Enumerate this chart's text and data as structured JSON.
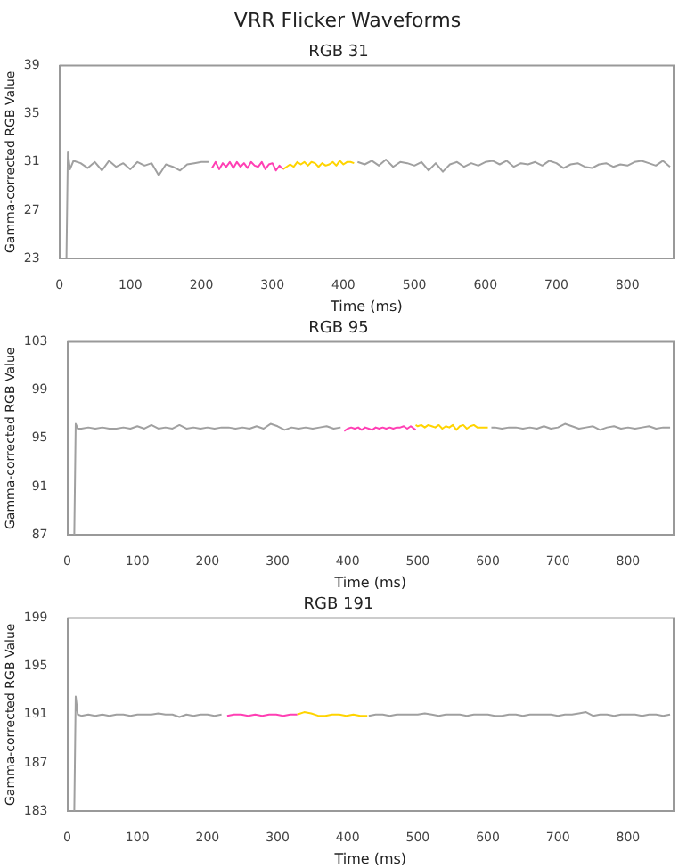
{
  "chart_data": [
    {
      "type": "line",
      "title": "VRR Flicker Waveforms",
      "subtitle": "RGB 31",
      "xlabel": "Time (ms)",
      "ylabel": "Gamma-corrected RGB Value",
      "xlim": [
        0,
        865
      ],
      "xticks": [
        0,
        100,
        200,
        300,
        400,
        500,
        600,
        700,
        800
      ],
      "ylim": [
        23,
        39
      ],
      "yticks": [
        23,
        27,
        31,
        35,
        39
      ],
      "grid": false,
      "legend": false,
      "marker": "none",
      "line_style": "solid",
      "series": [
        {
          "color": "#a0a0a0",
          "x": [
            10,
            12,
            15,
            20,
            30,
            40,
            50,
            60,
            70,
            80,
            90,
            100,
            110,
            120,
            130,
            140,
            150,
            160,
            170,
            180,
            190,
            200,
            210,
            213,
            420,
            430,
            440,
            450,
            460,
            470,
            480,
            490,
            500,
            510,
            520,
            530,
            540,
            550,
            560,
            570,
            580,
            590,
            600,
            610,
            620,
            630,
            640,
            650,
            660,
            670,
            680,
            690,
            700,
            710,
            720,
            730,
            740,
            750,
            760,
            770,
            780,
            790,
            800,
            810,
            820,
            830,
            840,
            850,
            860
          ],
          "values": [
            23,
            31.8,
            30.4,
            31.1,
            30.9,
            30.5,
            31.0,
            30.3,
            31.1,
            30.6,
            30.9,
            30.4,
            31.0,
            30.7,
            30.9,
            29.9,
            30.8,
            30.6,
            30.3,
            30.8,
            30.9,
            31.0,
            31.0,
            null,
            31.0,
            30.8,
            31.1,
            30.7,
            31.2,
            30.6,
            31.0,
            30.9,
            30.7,
            31.0,
            30.3,
            30.9,
            30.2,
            30.8,
            31.0,
            30.6,
            30.9,
            30.7,
            31.0,
            31.1,
            30.8,
            31.1,
            30.6,
            30.9,
            30.8,
            31.0,
            30.7,
            31.1,
            30.9,
            30.5,
            30.8,
            30.9,
            30.6,
            30.5,
            30.8,
            30.9,
            30.6,
            30.8,
            30.7,
            31.0,
            31.1,
            30.9,
            30.7,
            31.1,
            30.6
          ]
        },
        {
          "color": "#ff3fb4",
          "x": [
            215,
            220,
            225,
            230,
            235,
            240,
            245,
            250,
            255,
            260,
            265,
            270,
            275,
            280,
            285,
            290,
            295,
            300,
            305,
            310,
            315
          ],
          "values": [
            30.5,
            31.0,
            30.4,
            30.9,
            30.6,
            31.0,
            30.5,
            31.0,
            30.6,
            30.9,
            30.5,
            31.0,
            30.7,
            30.6,
            31.0,
            30.4,
            30.8,
            30.9,
            30.3,
            30.7,
            30.4
          ]
        },
        {
          "color": "#ffd400",
          "x": [
            315,
            320,
            325,
            330,
            335,
            340,
            345,
            350,
            355,
            360,
            365,
            370,
            375,
            380,
            385,
            390,
            395,
            400,
            405,
            410,
            415
          ],
          "values": [
            30.4,
            30.6,
            30.8,
            30.6,
            31.0,
            30.8,
            31.0,
            30.7,
            31.0,
            30.9,
            30.6,
            30.9,
            30.7,
            30.8,
            31.0,
            30.7,
            31.1,
            30.8,
            31.0,
            31.0,
            30.9
          ]
        }
      ]
    },
    {
      "type": "line",
      "subtitle": "RGB 95",
      "xlabel": "Time (ms)",
      "ylabel": "Gamma-corrected RGB Value",
      "xlim": [
        0,
        865
      ],
      "xticks": [
        0,
        100,
        200,
        300,
        400,
        500,
        600,
        700,
        800
      ],
      "ylim": [
        87,
        103
      ],
      "yticks": [
        87,
        91,
        95,
        99,
        103
      ],
      "grid": false,
      "legend": false,
      "marker": "none",
      "line_style": "solid",
      "series": [
        {
          "color": "#a0a0a0",
          "x": [
            10,
            12,
            15,
            20,
            30,
            40,
            50,
            60,
            70,
            80,
            90,
            100,
            110,
            120,
            130,
            140,
            150,
            160,
            170,
            180,
            190,
            200,
            210,
            220,
            230,
            240,
            250,
            260,
            270,
            280,
            290,
            300,
            310,
            320,
            330,
            340,
            350,
            360,
            370,
            380,
            390,
            393,
            605,
            610,
            620,
            630,
            640,
            650,
            660,
            670,
            680,
            690,
            700,
            710,
            720,
            730,
            740,
            750,
            760,
            770,
            780,
            790,
            800,
            810,
            820,
            830,
            840,
            850,
            860
          ],
          "values": [
            87,
            96.2,
            95.8,
            95.8,
            95.9,
            95.8,
            95.9,
            95.8,
            95.8,
            95.9,
            95.8,
            96.0,
            95.8,
            96.1,
            95.8,
            95.9,
            95.8,
            96.1,
            95.8,
            95.9,
            95.8,
            95.9,
            95.8,
            95.9,
            95.9,
            95.8,
            95.9,
            95.8,
            96.0,
            95.8,
            96.2,
            96.0,
            95.7,
            95.9,
            95.8,
            95.9,
            95.8,
            95.9,
            96.0,
            95.8,
            95.9,
            null,
            95.9,
            95.9,
            95.8,
            95.9,
            95.9,
            95.8,
            95.9,
            95.8,
            96.0,
            95.8,
            95.9,
            96.2,
            96.0,
            95.8,
            95.9,
            96.0,
            95.7,
            95.9,
            96.0,
            95.8,
            95.9,
            95.8,
            95.9,
            96.0,
            95.8,
            95.9,
            95.9
          ]
        },
        {
          "color": "#ff3fb4",
          "x": [
            395,
            400,
            405,
            410,
            415,
            420,
            425,
            430,
            435,
            440,
            445,
            450,
            455,
            460,
            465,
            470,
            475,
            480,
            485,
            490,
            497
          ],
          "values": [
            95.6,
            95.8,
            95.9,
            95.8,
            95.9,
            95.7,
            95.9,
            95.8,
            95.7,
            95.9,
            95.8,
            95.9,
            95.8,
            95.9,
            95.8,
            95.9,
            95.9,
            96.0,
            95.8,
            96.0,
            95.7
          ]
        },
        {
          "color": "#ffd400",
          "x": [
            497,
            500,
            505,
            510,
            515,
            520,
            525,
            530,
            535,
            540,
            545,
            550,
            555,
            560,
            565,
            570,
            575,
            580,
            585,
            590,
            600
          ],
          "values": [
            96.1,
            96.0,
            96.1,
            95.9,
            96.1,
            96.0,
            95.9,
            96.1,
            95.8,
            96.0,
            95.9,
            96.1,
            95.7,
            96.0,
            96.1,
            95.8,
            96.0,
            96.1,
            95.9,
            95.9,
            95.9
          ]
        }
      ]
    },
    {
      "type": "line",
      "subtitle": "RGB 191",
      "xlabel": "Time (ms)",
      "ylabel": "Gamma-corrected RGB Value",
      "xlim": [
        0,
        865
      ],
      "xticks": [
        0,
        100,
        200,
        300,
        400,
        500,
        600,
        700,
        800
      ],
      "ylim": [
        183,
        199
      ],
      "yticks": [
        183,
        187,
        191,
        195,
        199
      ],
      "grid": false,
      "legend": false,
      "marker": "none",
      "line_style": "solid",
      "series": [
        {
          "color": "#a0a0a0",
          "x": [
            10,
            12,
            15,
            20,
            30,
            40,
            50,
            60,
            70,
            80,
            90,
            100,
            110,
            120,
            130,
            140,
            150,
            160,
            170,
            180,
            190,
            200,
            210,
            220,
            225,
            430,
            440,
            450,
            460,
            470,
            480,
            490,
            500,
            510,
            520,
            530,
            540,
            550,
            560,
            570,
            580,
            590,
            600,
            610,
            620,
            630,
            640,
            650,
            660,
            670,
            680,
            690,
            700,
            710,
            720,
            730,
            740,
            750,
            760,
            770,
            780,
            790,
            800,
            810,
            820,
            830,
            840,
            850,
            860
          ],
          "values": [
            183,
            192.5,
            191.0,
            190.9,
            191.0,
            190.9,
            191.0,
            190.9,
            191.0,
            191.0,
            190.9,
            191.0,
            191.0,
            191.0,
            191.1,
            191.0,
            191.0,
            190.8,
            191.0,
            190.9,
            191.0,
            191.0,
            190.9,
            191.0,
            null,
            190.9,
            191.0,
            191.0,
            190.9,
            191.0,
            191.0,
            191.0,
            191.0,
            191.1,
            191.0,
            190.9,
            191.0,
            191.0,
            191.0,
            190.9,
            191.0,
            191.0,
            191.0,
            190.9,
            190.9,
            191.0,
            191.0,
            190.9,
            191.0,
            191.0,
            191.0,
            191.0,
            190.9,
            191.0,
            191.0,
            191.1,
            191.2,
            190.9,
            191.0,
            191.0,
            190.9,
            191.0,
            191.0,
            191.0,
            190.9,
            191.0,
            191.0,
            190.9,
            191.0
          ]
        },
        {
          "color": "#ff3fb4",
          "x": [
            228,
            238,
            248,
            258,
            268,
            278,
            288,
            298,
            308,
            318,
            328
          ],
          "values": [
            190.9,
            191.0,
            191.0,
            190.9,
            191.0,
            190.9,
            191.0,
            191.0,
            190.9,
            191.0,
            191.0
          ]
        },
        {
          "color": "#ffd400",
          "x": [
            328,
            338,
            348,
            358,
            368,
            378,
            388,
            398,
            408,
            418,
            428
          ],
          "values": [
            191.0,
            191.2,
            191.1,
            190.9,
            190.9,
            191.0,
            191.0,
            190.9,
            191.0,
            190.9,
            190.9
          ]
        }
      ]
    }
  ]
}
